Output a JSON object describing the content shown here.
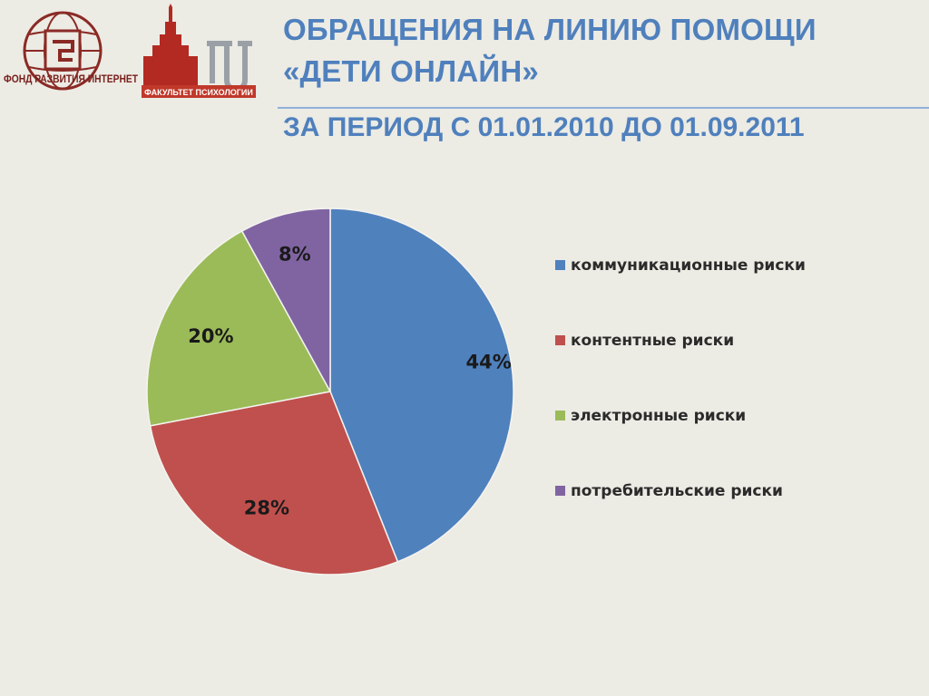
{
  "logos": {
    "fond_text": "ФОНД РАЗВИТИЯ ИНТЕРНЕТ",
    "psy_text": "ФАКУЛЬТЕТ ПСИХОЛОГИИ"
  },
  "title": {
    "line1": "ОБРАЩЕНИЯ НА ЛИНИЮ ПОМОЩИ",
    "line2": "«ДЕТИ ОНЛАЙН»"
  },
  "subtitle": "ЗА ПЕРИОД С 01.01.2010 ДО 01.09.2011",
  "chart_data": {
    "type": "pie",
    "title": "",
    "categories": [
      "коммуникационные риски",
      "контентные риски",
      "электронные риски",
      "потребительские риски"
    ],
    "values": [
      44,
      28,
      20,
      8
    ],
    "data_labels": [
      "44%",
      "28%",
      "20%",
      "8%"
    ],
    "colors": [
      "#4f81bd",
      "#c0504d",
      "#9bbb59",
      "#8064a2"
    ],
    "legend_position": "right"
  }
}
